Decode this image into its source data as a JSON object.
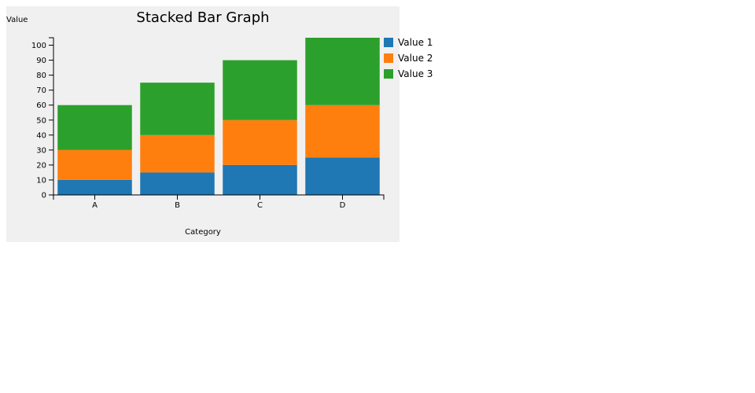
{
  "chart_data": {
    "type": "bar",
    "stacked": true,
    "title": "Stacked Bar Graph",
    "xlabel": "Category",
    "ylabel": "Value",
    "categories": [
      "A",
      "B",
      "C",
      "D"
    ],
    "series": [
      {
        "name": "Value 1",
        "color": "#1f77b4",
        "values": [
          10,
          15,
          20,
          25
        ]
      },
      {
        "name": "Value 2",
        "color": "#ff7f0e",
        "values": [
          20,
          25,
          30,
          35
        ]
      },
      {
        "name": "Value 3",
        "color": "#2ca02c",
        "values": [
          30,
          35,
          40,
          45
        ]
      }
    ],
    "ylim": [
      0,
      105
    ],
    "yticks": [
      0,
      10,
      20,
      30,
      40,
      50,
      60,
      70,
      80,
      90,
      100
    ],
    "grid": false,
    "legend_position": "right",
    "background": "#f0f0f0"
  }
}
